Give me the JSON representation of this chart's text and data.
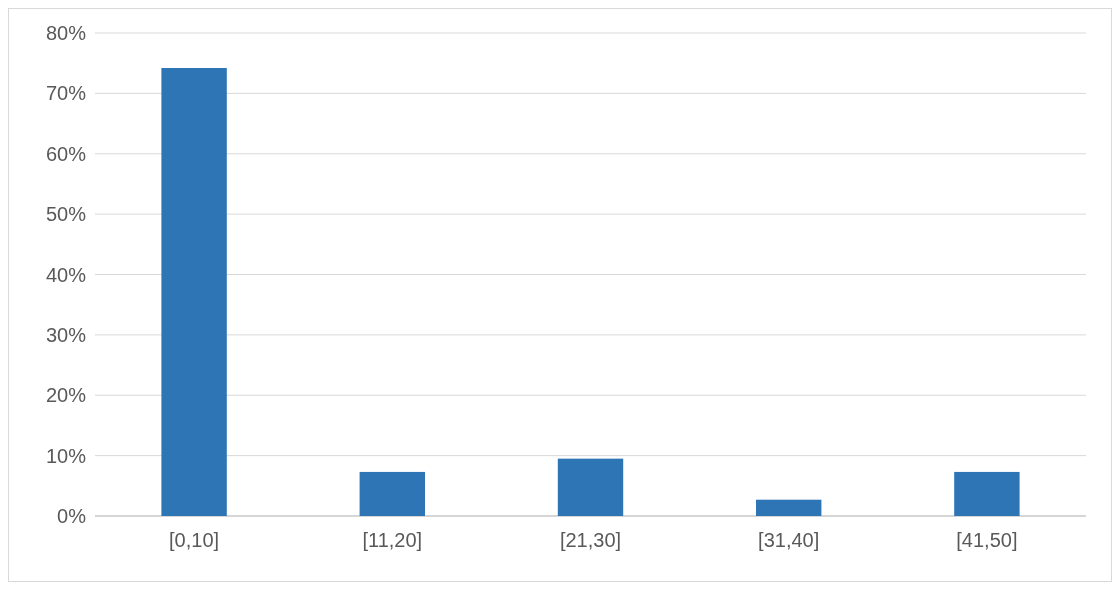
{
  "chart_data": {
    "type": "bar",
    "categories": [
      "[0,10]",
      "[11,20]",
      "[21,30]",
      "[31,40]",
      "[41,50]"
    ],
    "values": [
      74.2,
      7.3,
      9.5,
      2.7,
      7.3
    ],
    "color": "#2e75b6",
    "ylim": [
      0,
      80
    ],
    "yticks": [
      {
        "value": 0,
        "label": "0%"
      },
      {
        "value": 10,
        "label": "10%"
      },
      {
        "value": 20,
        "label": "20%"
      },
      {
        "value": 30,
        "label": "30%"
      },
      {
        "value": 40,
        "label": "40%"
      },
      {
        "value": 50,
        "label": "50%"
      },
      {
        "value": 60,
        "label": "60%"
      },
      {
        "value": 70,
        "label": "70%"
      },
      {
        "value": 80,
        "label": "80%"
      }
    ],
    "grid": "y"
  }
}
